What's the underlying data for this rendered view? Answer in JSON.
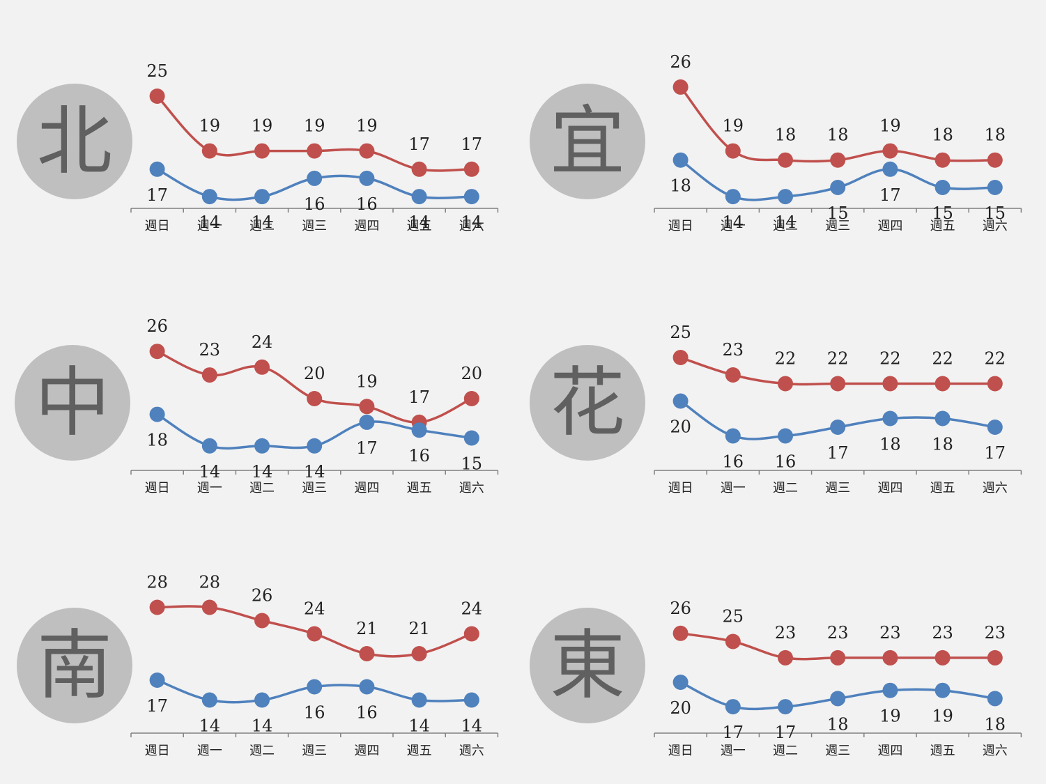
{
  "colors": {
    "background": "#f2f2f2",
    "high_series": "#c0504d",
    "low_series": "#4f81bd",
    "badge": "#bfbfbf",
    "badge_text": "#606060",
    "axis": "#7f7f7f",
    "label": "#222222"
  },
  "chart_data": [
    {
      "type": "line",
      "region": "北",
      "categories": [
        "週日",
        "週一",
        "週二",
        "週三",
        "週四",
        "週五",
        "週六"
      ],
      "series": [
        {
          "values": [
            25,
            19,
            19,
            19,
            19,
            17,
            17
          ]
        },
        {
          "values": [
            17,
            14,
            14,
            16,
            16,
            14,
            14
          ]
        }
      ]
    },
    {
      "type": "line",
      "region": "宜",
      "categories": [
        "週日",
        "週一",
        "週二",
        "週三",
        "週四",
        "週五",
        "週六"
      ],
      "series": [
        {
          "values": [
            26,
            19,
            18,
            18,
            19,
            18,
            18
          ]
        },
        {
          "values": [
            18,
            14,
            14,
            15,
            17,
            15,
            15
          ]
        }
      ]
    },
    {
      "type": "line",
      "region": "中",
      "categories": [
        "週日",
        "週一",
        "週二",
        "週三",
        "週四",
        "週五",
        "週六"
      ],
      "series": [
        {
          "values": [
            26,
            23,
            24,
            20,
            19,
            17,
            20
          ]
        },
        {
          "values": [
            18,
            14,
            14,
            14,
            17,
            16,
            15
          ]
        }
      ]
    },
    {
      "type": "line",
      "region": "花",
      "categories": [
        "週日",
        "週一",
        "週二",
        "週三",
        "週四",
        "週五",
        "週六"
      ],
      "series": [
        {
          "values": [
            25,
            23,
            22,
            22,
            22,
            22,
            22
          ]
        },
        {
          "values": [
            20,
            16,
            16,
            17,
            18,
            18,
            17
          ]
        }
      ]
    },
    {
      "type": "line",
      "region": "南",
      "categories": [
        "週日",
        "週一",
        "週二",
        "週三",
        "週四",
        "週五",
        "週六"
      ],
      "series": [
        {
          "values": [
            28,
            28,
            26,
            24,
            21,
            21,
            24
          ]
        },
        {
          "values": [
            17,
            14,
            14,
            16,
            16,
            14,
            14
          ]
        }
      ]
    },
    {
      "type": "line",
      "region": "東",
      "categories": [
        "週日",
        "週一",
        "週二",
        "週三",
        "週四",
        "週五",
        "週六"
      ],
      "series": [
        {
          "values": [
            26,
            25,
            23,
            23,
            23,
            23,
            23
          ]
        },
        {
          "values": [
            20,
            17,
            17,
            18,
            19,
            19,
            18
          ]
        }
      ]
    }
  ]
}
